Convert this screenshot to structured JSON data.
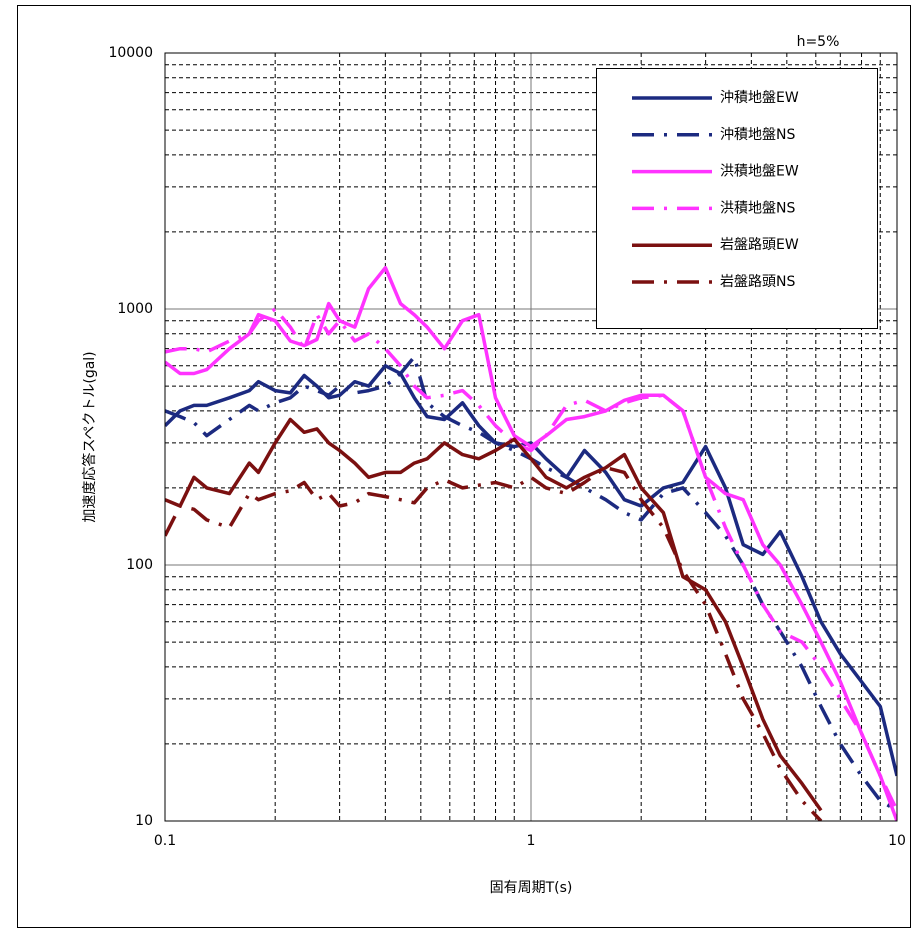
{
  "chart_data": {
    "type": "line",
    "annotation": "h=5%",
    "x_label": "固有周期T(s)",
    "y_label": "加速度応答スペクトル(gal)",
    "log_x": true,
    "log_y": true,
    "grid": true,
    "legend": "upper right",
    "xlim": [
      0.1,
      10
    ],
    "xticks": [
      0.1,
      1,
      10
    ],
    "ylim": [
      10,
      10000
    ],
    "yticks": [
      10,
      100,
      1000,
      10000
    ],
    "x": [
      0.1,
      0.11,
      0.12,
      0.13,
      0.15,
      0.17,
      0.18,
      0.2,
      0.22,
      0.24,
      0.26,
      0.28,
      0.3,
      0.33,
      0.36,
      0.4,
      0.44,
      0.48,
      0.52,
      0.58,
      0.65,
      0.72,
      0.8,
      0.9,
      1.0,
      1.1,
      1.25,
      1.4,
      1.6,
      1.8,
      2.0,
      2.3,
      2.6,
      3.0,
      3.4,
      3.8,
      4.3,
      4.8,
      5.5,
      6.2,
      7,
      8,
      9,
      10
    ],
    "series": [
      {
        "name": "沖積地盤EW",
        "color": "#1c2a80",
        "linestyle": "solid",
        "values": [
          350,
          400,
          420,
          420,
          450,
          480,
          520,
          480,
          470,
          550,
          500,
          450,
          460,
          520,
          500,
          600,
          560,
          450,
          380,
          370,
          430,
          350,
          300,
          290,
          300,
          260,
          220,
          280,
          230,
          180,
          170,
          200,
          210,
          290,
          200,
          120,
          110,
          135,
          90,
          60,
          45,
          35,
          28,
          15
        ]
      },
      {
        "name": "沖積地盤NS",
        "color": "#1c2a80",
        "linestyle": "dashdot",
        "values": [
          400,
          380,
          360,
          320,
          370,
          420,
          400,
          430,
          450,
          500,
          480,
          460,
          500,
          470,
          480,
          500,
          560,
          650,
          430,
          380,
          350,
          330,
          300,
          280,
          260,
          240,
          220,
          200,
          180,
          160,
          150,
          190,
          200,
          160,
          130,
          100,
          70,
          55,
          40,
          28,
          20,
          15,
          12,
          11
        ]
      },
      {
        "name": "洪積地盤EW",
        "color": "#ff33ff",
        "linestyle": "solid",
        "values": [
          620,
          560,
          560,
          580,
          700,
          800,
          950,
          900,
          750,
          720,
          760,
          1050,
          900,
          850,
          1200,
          1450,
          1050,
          950,
          850,
          700,
          900,
          950,
          450,
          320,
          290,
          320,
          370,
          380,
          400,
          440,
          460,
          460,
          400,
          220,
          190,
          180,
          120,
          100,
          70,
          50,
          35,
          22,
          15,
          10
        ]
      },
      {
        "name": "洪積地盤NS",
        "color": "#ff33ff",
        "linestyle": "dashdot",
        "values": [
          680,
          700,
          700,
          680,
          750,
          800,
          900,
          1000,
          850,
          700,
          950,
          800,
          900,
          750,
          800,
          700,
          600,
          500,
          450,
          460,
          480,
          420,
          350,
          300,
          280,
          320,
          420,
          440,
          400,
          430,
          450,
          460,
          400,
          220,
          140,
          100,
          70,
          55,
          50,
          40,
          30,
          22,
          15,
          11
        ]
      },
      {
        "name": "岩盤路頭EW",
        "color": "#7b1010",
        "linestyle": "solid",
        "values": [
          180,
          170,
          220,
          200,
          190,
          250,
          230,
          300,
          370,
          330,
          340,
          300,
          280,
          250,
          220,
          230,
          230,
          250,
          260,
          300,
          270,
          260,
          280,
          310,
          260,
          220,
          200,
          220,
          240,
          270,
          200,
          160,
          90,
          80,
          60,
          40,
          25,
          18,
          14,
          11,
          null,
          null,
          null,
          null
        ]
      },
      {
        "name": "岩盤路頭NS",
        "color": "#7b1010",
        "linestyle": "dashdot",
        "values": [
          130,
          170,
          165,
          150,
          140,
          190,
          180,
          190,
          195,
          210,
          180,
          190,
          170,
          175,
          190,
          185,
          180,
          175,
          200,
          215,
          200,
          205,
          210,
          200,
          220,
          200,
          190,
          210,
          240,
          230,
          180,
          140,
          95,
          70,
          45,
          30,
          22,
          16,
          12,
          10,
          null,
          null,
          null,
          null
        ]
      }
    ]
  }
}
